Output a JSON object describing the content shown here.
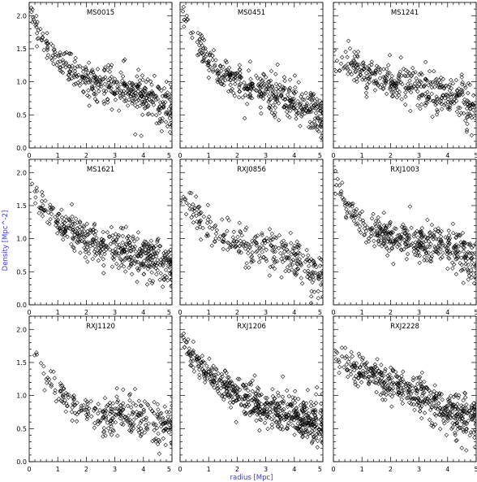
{
  "chart_data": {
    "type": "scatter",
    "marker": "diamond",
    "marker_color": "#000000",
    "axis_label_color": "#3a3ad6",
    "xlabel": "radius [Mpc]",
    "ylabel": "Density [Mpc^-2]",
    "xlim": [
      0,
      5
    ],
    "ylim": [
      0,
      2.2
    ],
    "xticks": [
      "0",
      "1",
      "2",
      "3",
      "4",
      "5"
    ],
    "yticks": [
      "0.0",
      "0.5",
      "1.0",
      "1.5",
      "2.0"
    ],
    "panels": [
      {
        "title": "MS0015",
        "points_approx": 420,
        "profile": {
          "r": [
            0,
            0.5,
            1,
            2,
            3,
            4,
            5
          ],
          "density": [
            2.1,
            1.6,
            1.35,
            1.05,
            0.95,
            0.8,
            0.55
          ]
        }
      },
      {
        "title": "MS0451",
        "points_approx": 420,
        "profile": {
          "r": [
            0,
            0.5,
            1,
            2,
            3,
            4,
            5
          ],
          "density": [
            2.15,
            1.65,
            1.3,
            1.0,
            0.85,
            0.7,
            0.5
          ]
        }
      },
      {
        "title": "MS1241",
        "points_approx": 380,
        "profile": {
          "r": [
            0,
            0.5,
            1,
            2,
            3,
            4,
            5
          ],
          "density": [
            1.3,
            1.25,
            1.15,
            1.0,
            0.9,
            0.8,
            0.6
          ]
        }
      },
      {
        "title": "MS1621",
        "points_approx": 460,
        "profile": {
          "r": [
            0,
            0.5,
            1,
            2,
            3,
            4,
            5
          ],
          "density": [
            1.75,
            1.5,
            1.25,
            1.0,
            0.85,
            0.75,
            0.6
          ]
        }
      },
      {
        "title": "RXJ0856",
        "points_approx": 300,
        "profile": {
          "r": [
            0,
            0.5,
            1,
            2,
            3,
            4,
            5
          ],
          "density": [
            1.55,
            1.4,
            1.2,
            0.9,
            0.85,
            0.7,
            0.45
          ]
        }
      },
      {
        "title": "RXJ1003",
        "points_approx": 420,
        "profile": {
          "r": [
            0,
            0.5,
            1,
            2,
            3,
            4,
            5
          ],
          "density": [
            1.9,
            1.5,
            1.2,
            1.0,
            0.95,
            0.9,
            0.6
          ]
        }
      },
      {
        "title": "RXJ1120",
        "points_approx": 300,
        "profile": {
          "r": [
            0,
            0.5,
            1,
            2,
            3,
            4,
            5
          ],
          "density": [
            1.8,
            1.4,
            1.0,
            0.75,
            0.7,
            0.65,
            0.55
          ]
        }
      },
      {
        "title": "RXJ1206",
        "points_approx": 560,
        "profile": {
          "r": [
            0,
            0.5,
            1,
            2,
            3,
            4,
            5
          ],
          "density": [
            1.9,
            1.55,
            1.3,
            1.0,
            0.8,
            0.7,
            0.55
          ]
        }
      },
      {
        "title": "RXJ2228",
        "points_approx": 480,
        "profile": {
          "r": [
            0,
            0.5,
            1,
            2,
            3,
            4,
            5
          ],
          "density": [
            1.55,
            1.45,
            1.35,
            1.2,
            1.0,
            0.75,
            0.65
          ]
        }
      }
    ]
  }
}
